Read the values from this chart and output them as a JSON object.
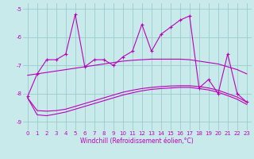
{
  "title": "",
  "xlabel": "Windchill (Refroidissement éolien,°C)",
  "x_values": [
    0,
    1,
    2,
    3,
    4,
    5,
    6,
    7,
    8,
    9,
    10,
    11,
    12,
    13,
    14,
    15,
    16,
    17,
    18,
    19,
    20,
    21,
    22,
    23
  ],
  "line1": [
    -8.1,
    -7.3,
    -6.8,
    -6.8,
    -6.6,
    -5.2,
    -7.05,
    -6.8,
    -6.8,
    -7.0,
    -6.7,
    -6.5,
    -5.55,
    -6.5,
    -5.9,
    -5.65,
    -5.4,
    -5.25,
    -7.8,
    -7.5,
    -8.0,
    -6.6,
    -8.0,
    -8.3
  ],
  "line2": [
    -7.35,
    -7.3,
    -7.25,
    -7.2,
    -7.15,
    -7.1,
    -7.05,
    -7.0,
    -6.95,
    -6.9,
    -6.85,
    -6.82,
    -6.8,
    -6.78,
    -6.78,
    -6.78,
    -6.78,
    -6.8,
    -6.85,
    -6.9,
    -6.95,
    -7.05,
    -7.15,
    -7.3
  ],
  "line3": [
    -8.15,
    -8.6,
    -8.62,
    -8.6,
    -8.55,
    -8.45,
    -8.35,
    -8.25,
    -8.15,
    -8.05,
    -7.95,
    -7.88,
    -7.82,
    -7.78,
    -7.75,
    -7.73,
    -7.72,
    -7.72,
    -7.75,
    -7.8,
    -7.88,
    -8.0,
    -8.12,
    -8.3
  ],
  "line4": [
    -8.15,
    -8.75,
    -8.78,
    -8.72,
    -8.65,
    -8.55,
    -8.45,
    -8.35,
    -8.25,
    -8.15,
    -8.05,
    -7.97,
    -7.9,
    -7.85,
    -7.82,
    -7.8,
    -7.78,
    -7.78,
    -7.82,
    -7.87,
    -7.95,
    -8.07,
    -8.2,
    -8.38
  ],
  "ylim": [
    -9.3,
    -4.8
  ],
  "xlim": [
    -0.5,
    23.5
  ],
  "yticks": [
    -9,
    -8,
    -7,
    -6,
    -5
  ],
  "bg_color": "#c8eaea",
  "line_color": "#bb00bb",
  "grid_color": "#99cccc",
  "tick_fontsize": 5,
  "xlabel_fontsize": 5.5
}
